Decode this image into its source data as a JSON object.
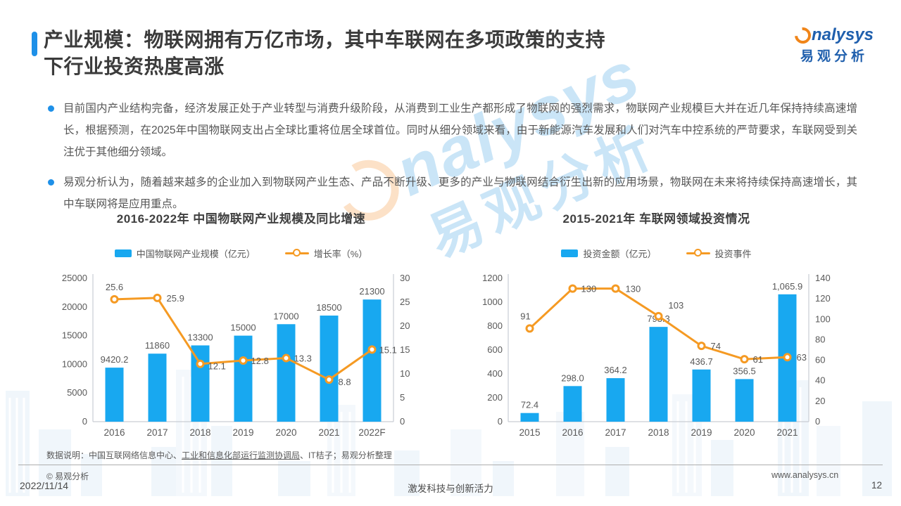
{
  "page": {
    "title_lines": [
      "产业规模：物联网拥有万亿市场，其中车联网在多项政策的支持",
      "下行业投资热度高涨"
    ],
    "date": "2022/11/14",
    "slogan": "激发科技与创新活力",
    "page_number": "12",
    "website": "www.analysys.cn",
    "copyright": "© 易观分析",
    "data_note_prefix": "数据说明：中国互联网络信息中心、",
    "data_note_link": "工业和信息化部运行监测协调局",
    "data_note_suffix": "、IT桔子；易观分析整理"
  },
  "logo": {
    "brand": "nalysys",
    "brand_cn": "易观分析"
  },
  "watermark": {
    "text": "nalysys",
    "text_cn": "易观分析"
  },
  "bullets": [
    "目前国内产业结构完备，经济发展正处于产业转型与消费升级阶段，从消费到工业生产都形成了物联网的强烈需求，物联网产业规模巨大并在近几年保持持续高速增长，根据预测，在2025年中国物联网支出占全球比重将位居全球首位。同时从细分领域来看，由于新能源汽车发展和人们对汽车中控系统的严苛要求，车联网受到关注优于其他细分领域。",
    "易观分析认为，随着越来越多的企业加入到物联网产业生态、产品不断升级、更多的产业与物联网结合衍生出新的应用场景，物联网在未来将持续保持高速增长，其中车联网将是应用重点。"
  ],
  "colors": {
    "bar": "#18a8f0",
    "line": "#f59a23",
    "accent": "#1e90e8",
    "logo_blue": "#1f5fad",
    "logo_orange": "#f08519",
    "text": "#595959",
    "title": "#3b3b3b"
  },
  "chart_data": [
    {
      "type": "bar",
      "combo": "bar+line",
      "title": "2016-2022年 中国物联网产业规模及同比增速",
      "categories": [
        "2016",
        "2017",
        "2018",
        "2019",
        "2020",
        "2021",
        "2022F"
      ],
      "series": [
        {
          "type": "bar",
          "name": "中国物联网产业规模（亿元）",
          "color": "#18a8f0",
          "axis": "left",
          "values": [
            9420.2,
            11860,
            13300,
            15000,
            17000,
            18500,
            21300
          ],
          "labels": [
            "9420.2",
            "11860",
            "13300",
            "15000",
            "17000",
            "18500",
            "21300"
          ]
        },
        {
          "type": "line",
          "name": "增长率（%）",
          "color": "#f59a23",
          "axis": "right",
          "values": [
            25.6,
            25.9,
            12.1,
            12.8,
            13.3,
            8.8,
            15.1
          ],
          "labels": [
            "25.6",
            "25.9",
            "12.1",
            "12.8",
            "13.3",
            "8.8",
            "15.1"
          ],
          "label_offsets": [
            [
              0,
              -13,
              "middle"
            ],
            [
              13,
              5,
              "start"
            ],
            [
              11,
              8,
              "start"
            ],
            [
              11,
              5,
              "start"
            ],
            [
              11,
              5,
              "start"
            ],
            [
              13,
              8,
              "start"
            ],
            [
              10,
              5,
              "start"
            ]
          ]
        }
      ],
      "left_axis": {
        "min": 0,
        "max": 25000,
        "ticks": [
          "0",
          "5000",
          "10000",
          "15000",
          "20000",
          "25000"
        ]
      },
      "right_axis": {
        "min": 0,
        "max": 30,
        "ticks": [
          "0",
          "5",
          "10",
          "15",
          "20",
          "25",
          "30"
        ]
      },
      "grid": false,
      "legend_position": "top"
    },
    {
      "type": "bar",
      "combo": "bar+line",
      "title": "2015-2021年 车联网领域投资情况",
      "categories": [
        "2015",
        "2016",
        "2017",
        "2018",
        "2019",
        "2020",
        "2021"
      ],
      "series": [
        {
          "type": "bar",
          "name": "投资金额（亿元）",
          "color": "#18a8f0",
          "axis": "left",
          "values": [
            72.4,
            298.0,
            364.2,
            793.3,
            436.7,
            356.5,
            1065.9
          ],
          "labels": [
            "72.4",
            "298.0",
            "364.2",
            "793.3",
            "436.7",
            "356.5",
            "1,065.9"
          ]
        },
        {
          "type": "line",
          "name": "投资事件",
          "color": "#f59a23",
          "axis": "right",
          "values": [
            91,
            130,
            130,
            103,
            74,
            61,
            63
          ],
          "labels": [
            "91",
            "130",
            "130",
            "103",
            "74",
            "61",
            "63"
          ],
          "label_offsets": [
            [
              -6,
              -13,
              "middle"
            ],
            [
              12,
              5,
              "start"
            ],
            [
              14,
              5,
              "start"
            ],
            [
              14,
              -11,
              "start"
            ],
            [
              13,
              5,
              "start"
            ],
            [
              12,
              5,
              "start"
            ],
            [
              13,
              5,
              "start"
            ]
          ]
        }
      ],
      "left_axis": {
        "min": 0,
        "max": 1200,
        "ticks": [
          "0",
          "200",
          "400",
          "600",
          "800",
          "1000",
          "1200"
        ]
      },
      "right_axis": {
        "min": 0,
        "max": 140,
        "ticks": [
          "0",
          "20",
          "40",
          "60",
          "80",
          "100",
          "120",
          "140"
        ]
      },
      "grid": false,
      "legend_position": "top"
    }
  ]
}
